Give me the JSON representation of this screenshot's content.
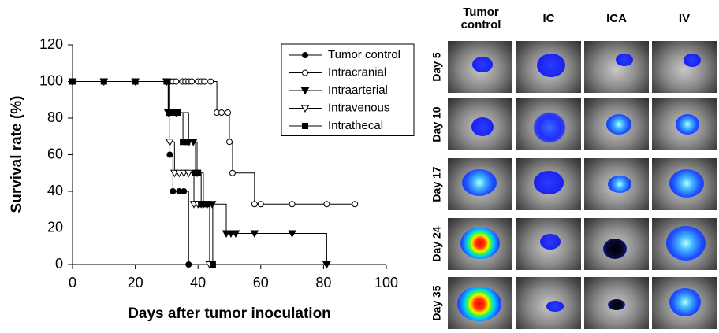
{
  "chart_data": {
    "type": "step",
    "xlabel": "Days after tumor inoculation",
    "ylabel": "Survival rate (%)",
    "xlim": [
      0,
      100
    ],
    "xticks": [
      0,
      20,
      40,
      60,
      80,
      100
    ],
    "ylim": [
      0,
      120
    ],
    "yticks": [
      0,
      20,
      40,
      60,
      80,
      100,
      120
    ],
    "grid": false,
    "legend": "upper right",
    "series": [
      {
        "name": "Tumor control",
        "color": "#000000",
        "marker": "circle-filled",
        "x": [
          0,
          10,
          20,
          30,
          31,
          32,
          34,
          35.5,
          37
        ],
        "values": [
          100,
          100,
          100,
          100,
          60,
          40,
          40,
          40,
          0
        ]
      },
      {
        "name": "Intracranial",
        "color": "#000000",
        "marker": "circle-open",
        "x": [
          0,
          10,
          20,
          30,
          31,
          32,
          33,
          35,
          36,
          37,
          38,
          40,
          41,
          42,
          44,
          46,
          47.5,
          49.5,
          50,
          51,
          58,
          60,
          70,
          81,
          90
        ],
        "values": [
          100,
          100,
          100,
          100,
          100,
          100,
          100,
          100,
          100,
          100,
          100,
          100,
          100,
          100,
          100,
          83,
          83,
          83,
          67,
          50,
          33,
          33,
          33,
          33,
          33
        ]
      },
      {
        "name": "Intraarterial",
        "color": "#000000",
        "marker": "triangle-down-filled",
        "x": [
          0,
          10,
          20,
          30,
          30.5,
          33,
          37,
          38.5,
          39.7,
          41.7,
          43,
          44.5,
          49,
          50.5,
          52,
          58,
          70,
          81
        ],
        "values": [
          100,
          100,
          100,
          100,
          83,
          83,
          67,
          67,
          50,
          33,
          33,
          33,
          17,
          17,
          17,
          17,
          17,
          0
        ]
      },
      {
        "name": "Intravenous",
        "color": "#000000",
        "marker": "triangle-down-open",
        "x": [
          0,
          30,
          30.5,
          31,
          32.5,
          34,
          35.5,
          37,
          38.7,
          40,
          41,
          43.7
        ],
        "values": [
          100,
          100,
          83,
          67,
          50,
          50,
          50,
          50,
          33,
          33,
          33,
          0
        ]
      },
      {
        "name": "Intrathecal",
        "color": "#000000",
        "marker": "square-filled",
        "x": [
          0,
          10,
          20,
          30,
          30.7,
          32,
          33.5,
          35.2,
          36.5,
          39.2,
          40,
          41,
          42,
          43,
          44.7
        ],
        "values": [
          100,
          100,
          100,
          100,
          83,
          83,
          83,
          67,
          67,
          50,
          50,
          33,
          33,
          33,
          0
        ]
      }
    ]
  },
  "image_panel": {
    "columns": [
      "Tumor control",
      "IC",
      "ICA",
      "IV"
    ],
    "rows": [
      "Day 5",
      "Day 10",
      "Day 17",
      "Day 24",
      "Day 35"
    ]
  }
}
